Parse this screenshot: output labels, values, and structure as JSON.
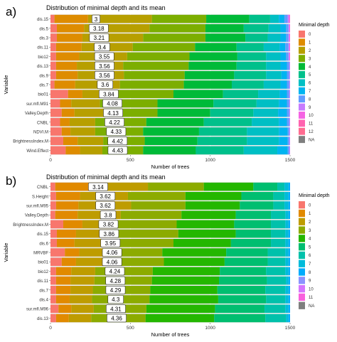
{
  "chart_data": [
    {
      "panel_label": "a)",
      "type": "bar",
      "orientation": "horizontal",
      "stacked": true,
      "title": "Distribution of minimal depth and its mean",
      "xlabel": "Number of trees",
      "ylabel": "Variable",
      "xlim": [
        0,
        1500
      ],
      "xticks": [
        0,
        500,
        1000,
        1500
      ],
      "legend": {
        "title": "Minimal depth",
        "position": "right",
        "entries": [
          "0",
          "1",
          "2",
          "3",
          "4",
          "5",
          "6",
          "7",
          "8",
          "9",
          "10",
          "11",
          "12",
          "NA"
        ]
      },
      "categories": [
        "dis.15",
        "dis.5",
        "dis.3",
        "dis.11",
        "bio12",
        "dis.13",
        "dis.9",
        "dis.7",
        "bio01",
        "sur.mfl.M91",
        "Valley.Depth",
        "CNBL",
        "NDVI.M",
        "BrightnessIndex.M",
        "Wind.Effect"
      ],
      "mean_labels": [
        "3",
        "3.18",
        "3.21",
        "3.4",
        "3.55",
        "3.56",
        "3.56",
        "3.6",
        "3.84",
        "4.08",
        "4.13",
        "4.22",
        "4.33",
        "4.42",
        "4.43"
      ],
      "mean_label_x": [
        3,
        3.18,
        3.21,
        3.4,
        3.55,
        3.56,
        3.56,
        3.6,
        3.84,
        4.08,
        4.13,
        4.22,
        4.33,
        4.42,
        4.43
      ],
      "segments": [
        [
          25,
          210,
          400,
          340,
          270,
          130,
          55,
          35,
          20,
          8,
          5,
          2,
          0,
          0
        ],
        [
          40,
          170,
          410,
          350,
          240,
          155,
          75,
          35,
          15,
          5,
          5,
          0,
          0,
          0
        ],
        [
          40,
          160,
          380,
          390,
          250,
          140,
          80,
          35,
          15,
          5,
          5,
          0,
          0,
          0
        ],
        [
          35,
          160,
          320,
          390,
          260,
          170,
          100,
          35,
          20,
          5,
          5,
          0,
          0,
          0
        ],
        [
          35,
          145,
          300,
          390,
          300,
          180,
          90,
          35,
          15,
          5,
          5,
          0,
          0,
          0
        ],
        [
          35,
          130,
          290,
          410,
          300,
          185,
          90,
          40,
          15,
          5,
          0,
          0,
          0,
          0
        ],
        [
          35,
          135,
          290,
          380,
          310,
          200,
          95,
          35,
          15,
          5,
          0,
          0,
          0,
          0
        ],
        [
          25,
          130,
          280,
          400,
          300,
          200,
          105,
          40,
          15,
          5,
          0,
          0,
          0,
          0
        ],
        [
          110,
          90,
          220,
          350,
          310,
          220,
          135,
          45,
          15,
          5,
          0,
          0,
          0,
          0
        ],
        [
          60,
          70,
          180,
          360,
          350,
          270,
          140,
          50,
          15,
          5,
          0,
          0,
          0,
          0
        ],
        [
          70,
          80,
          190,
          330,
          330,
          270,
          155,
          55,
          15,
          5,
          0,
          0,
          0,
          0
        ],
        [
          60,
          60,
          160,
          320,
          360,
          300,
          170,
          50,
          15,
          5,
          0,
          0,
          0,
          0
        ],
        [
          70,
          55,
          155,
          300,
          350,
          300,
          200,
          55,
          10,
          5,
          0,
          0,
          0,
          0
        ],
        [
          80,
          90,
          160,
          260,
          330,
          310,
          200,
          55,
          10,
          5,
          0,
          0,
          0,
          0
        ],
        [
          95,
          90,
          140,
          255,
          330,
          300,
          210,
          65,
          10,
          5,
          0,
          0,
          0,
          0
        ]
      ]
    },
    {
      "panel_label": "b)",
      "type": "bar",
      "orientation": "horizontal",
      "stacked": true,
      "title": "Distribution of minimal depth and its mean",
      "xlabel": "Number of trees",
      "ylabel": "Variable",
      "xlim": [
        0,
        1500
      ],
      "xticks": [
        0,
        500,
        1000,
        1500
      ],
      "legend": {
        "title": "Minimal depth",
        "position": "right",
        "entries": [
          "0",
          "1",
          "2",
          "3",
          "4",
          "5",
          "6",
          "7",
          "8",
          "9",
          "10",
          "11",
          "NA"
        ]
      },
      "categories": [
        "CNBL",
        "S.Height",
        "sur.mfl.M95",
        "Valley.Depth",
        "BrightnessIndex.M",
        "dis.15",
        "dis.6",
        "MRVBF",
        "bio01",
        "bio12",
        "dis.11",
        "dis.7",
        "dis.4",
        "sur.mfl.M96",
        "dis.13"
      ],
      "mean_labels": [
        "3.14",
        "3.62",
        "3.62",
        "3.8",
        "3.82",
        "3.86",
        "3.95",
        "4.06",
        "4.06",
        "4.24",
        "4.28",
        "4.29",
        "4.3",
        "4.31",
        "4.36"
      ],
      "mean_label_x": [
        3.14,
        3.62,
        3.62,
        3.8,
        3.82,
        3.86,
        3.95,
        4.06,
        4.06,
        4.24,
        4.28,
        4.29,
        4.3,
        4.31,
        4.36
      ],
      "segments": [
        [
          30,
          210,
          370,
          350,
          310,
          150,
          45,
          25,
          10,
          0,
          0,
          0,
          0
        ],
        [
          35,
          150,
          300,
          360,
          350,
          200,
          70,
          25,
          10,
          0,
          0,
          0,
          0
        ],
        [
          35,
          140,
          330,
          340,
          340,
          210,
          70,
          25,
          10,
          0,
          0,
          0,
          0
        ],
        [
          30,
          140,
          270,
          380,
          340,
          220,
          90,
          20,
          10,
          0,
          0,
          0,
          0
        ],
        [
          80,
          120,
          190,
          400,
          360,
          230,
          90,
          20,
          10,
          0,
          0,
          0,
          0
        ],
        [
          40,
          120,
          220,
          420,
          360,
          220,
          90,
          20,
          10,
          0,
          0,
          0,
          0
        ],
        [
          40,
          110,
          200,
          420,
          360,
          250,
          90,
          20,
          10,
          0,
          0,
          0,
          0
        ],
        [
          90,
          90,
          160,
          360,
          400,
          260,
          110,
          20,
          10,
          0,
          0,
          0,
          0
        ],
        [
          70,
          90,
          170,
          380,
          380,
          270,
          110,
          20,
          10,
          0,
          0,
          0,
          0
        ],
        [
          35,
          95,
          150,
          360,
          420,
          290,
          120,
          20,
          10,
          0,
          0,
          0,
          0
        ],
        [
          35,
          90,
          150,
          360,
          420,
          300,
          120,
          15,
          10,
          0,
          0,
          0,
          0
        ],
        [
          35,
          90,
          140,
          360,
          420,
          300,
          125,
          20,
          10,
          0,
          0,
          0,
          0
        ],
        [
          35,
          85,
          140,
          360,
          430,
          300,
          120,
          20,
          10,
          0,
          0,
          0,
          0
        ],
        [
          50,
          80,
          140,
          330,
          430,
          310,
          130,
          20,
          10,
          0,
          0,
          0,
          0
        ],
        [
          35,
          80,
          140,
          340,
          430,
          320,
          130,
          15,
          10,
          0,
          0,
          0,
          0
        ]
      ]
    }
  ],
  "palette": {
    "a": [
      "#f8766d",
      "#de8c00",
      "#b79f00",
      "#7cae00",
      "#00ba38",
      "#00c08b",
      "#00bfc4",
      "#00b4f0",
      "#619cff",
      "#c77cff",
      "#f564e3",
      "#ff64b0",
      "#ff6c91",
      "#7f7f7f"
    ],
    "b": [
      "#f8766d",
      "#e18a00",
      "#be9c00",
      "#8cab00",
      "#24b700",
      "#00be70",
      "#00c1ab",
      "#00bbda",
      "#00acfc",
      "#8b93ff",
      "#d575fe",
      "#f962dd",
      "#7f7f7f"
    ]
  }
}
